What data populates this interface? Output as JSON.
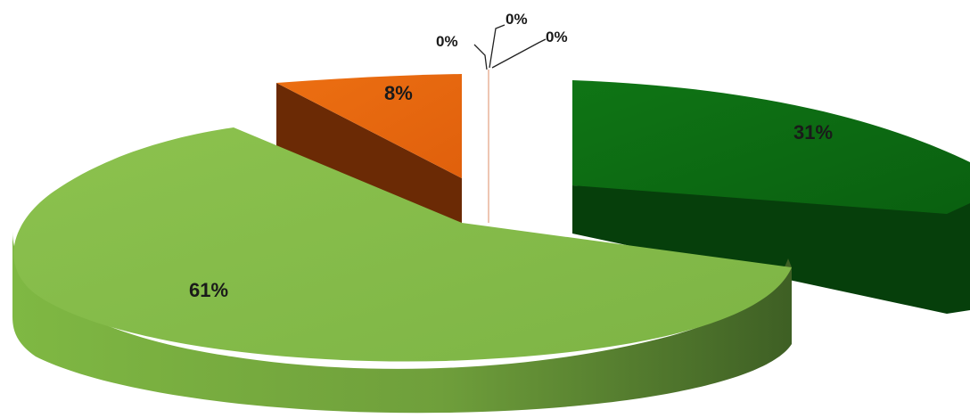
{
  "chart_data": {
    "type": "pie",
    "style": "3d-exploded",
    "legend": "none",
    "slices": [
      {
        "value": 61,
        "label": "61%",
        "color": "#84bb47"
      },
      {
        "value": 31,
        "label": "31%",
        "color": "#0b6b12"
      },
      {
        "value": 8,
        "label": "8%",
        "color": "#e6680f"
      },
      {
        "value": 0,
        "label": "0%",
        "color": "#8b2a05"
      },
      {
        "value": 0,
        "label": "0%",
        "color": "#ffffff"
      },
      {
        "value": 0,
        "label": "0%",
        "color": "#ffffff"
      }
    ]
  }
}
